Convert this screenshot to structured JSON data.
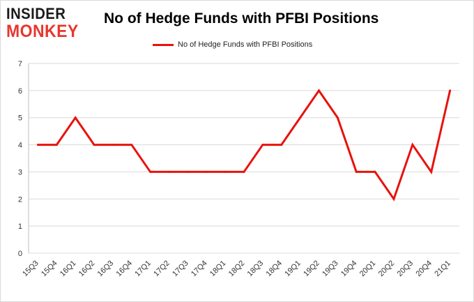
{
  "logo": {
    "line1": "INSIDER",
    "line2": "MONKEY"
  },
  "chart_data": {
    "type": "line",
    "title": "No of Hedge Funds with PFBI Positions",
    "xlabel": "",
    "ylabel": "",
    "categories": [
      "15Q3",
      "15Q4",
      "16Q1",
      "16Q2",
      "16Q3",
      "16Q4",
      "17Q1",
      "17Q2",
      "17Q3",
      "17Q4",
      "18Q1",
      "18Q2",
      "18Q3",
      "18Q4",
      "19Q1",
      "19Q2",
      "19Q3",
      "19Q4",
      "20Q1",
      "20Q2",
      "20Q3",
      "20Q4",
      "21Q1"
    ],
    "series": [
      {
        "name": "No of Hedge Funds with PFBI Positions",
        "color": "#e8120c",
        "values": [
          4,
          4,
          5,
          4,
          4,
          4,
          3,
          3,
          3,
          3,
          3,
          3,
          4,
          4,
          5,
          6,
          5,
          3,
          3,
          2,
          4,
          3,
          6
        ]
      }
    ],
    "ylim": [
      0,
      7
    ],
    "yticks": [
      0,
      1,
      2,
      3,
      4,
      5,
      6,
      7
    ],
    "grid": true,
    "legend_position": "top-center"
  }
}
